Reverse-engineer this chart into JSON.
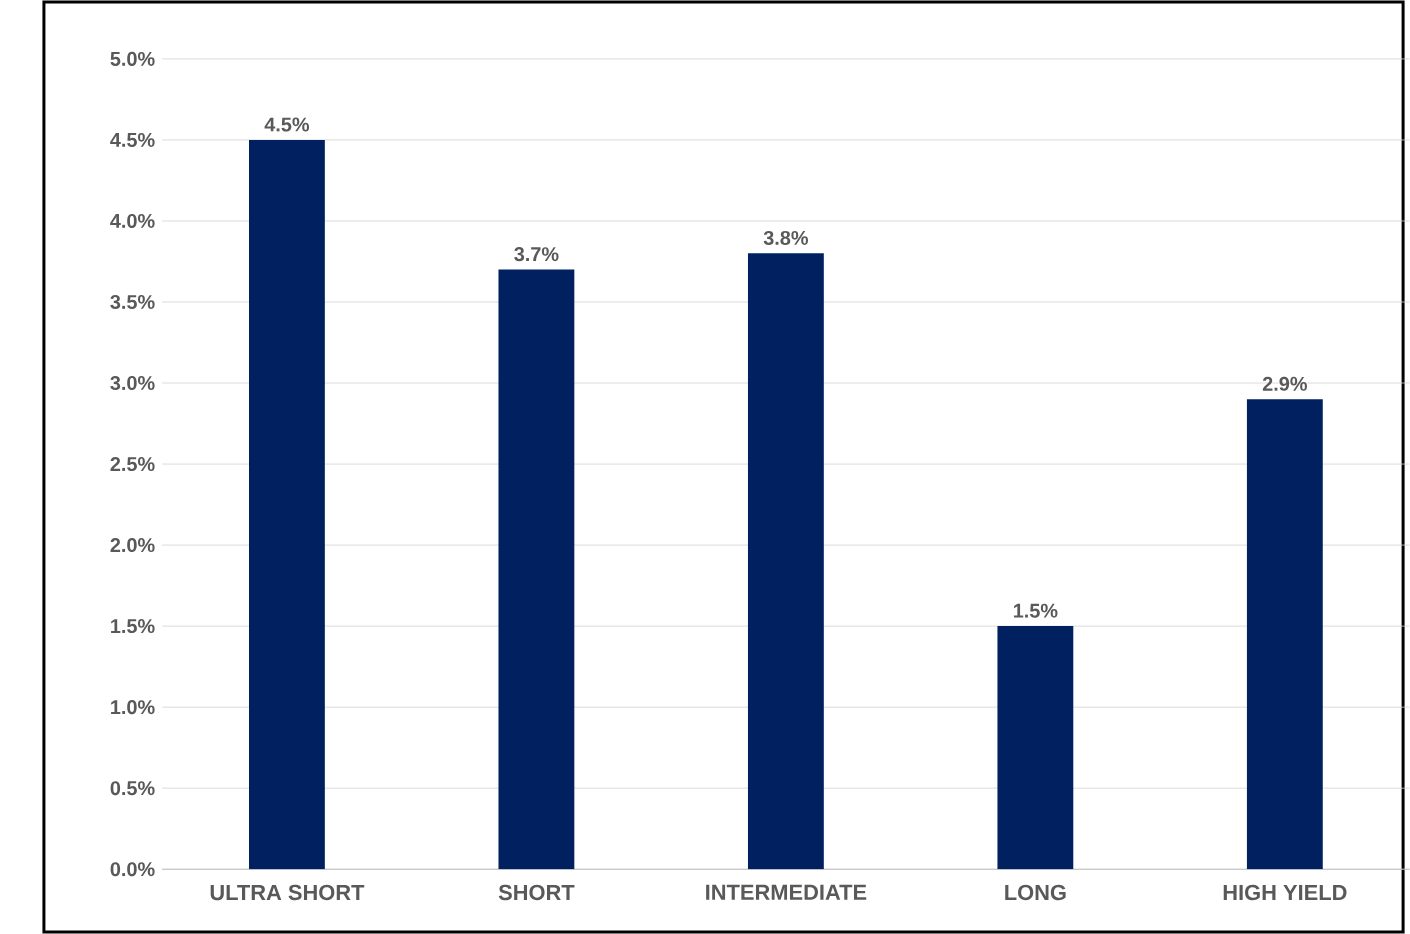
{
  "chart_data": {
    "type": "bar",
    "categories": [
      "ULTRA SHORT",
      "SHORT",
      "INTERMEDIATE",
      "LONG",
      "HIGH YIELD"
    ],
    "values": [
      4.5,
      3.7,
      3.8,
      1.5,
      2.9
    ],
    "color": "#002060",
    "value_labels": [
      "4.5%",
      "3.7%",
      "3.8%",
      "1.5%",
      "2.9%"
    ],
    "grid": "y",
    "ylim": [
      0,
      5
    ],
    "yticks": [
      {
        "value": 0,
        "label": "0.0%"
      },
      {
        "value": 0.5,
        "label": "0.5%"
      },
      {
        "value": 1,
        "label": "1.0%"
      },
      {
        "value": 1.5,
        "label": "1.5%"
      },
      {
        "value": 2,
        "label": "2.0%"
      },
      {
        "value": 2.5,
        "label": "2.5%"
      },
      {
        "value": 3,
        "label": "3.0%"
      },
      {
        "value": 3.5,
        "label": "3.5%"
      },
      {
        "value": 4,
        "label": "4.0%"
      },
      {
        "value": 4.5,
        "label": "4.5%"
      },
      {
        "value": 5,
        "label": "5.0%"
      }
    ]
  }
}
